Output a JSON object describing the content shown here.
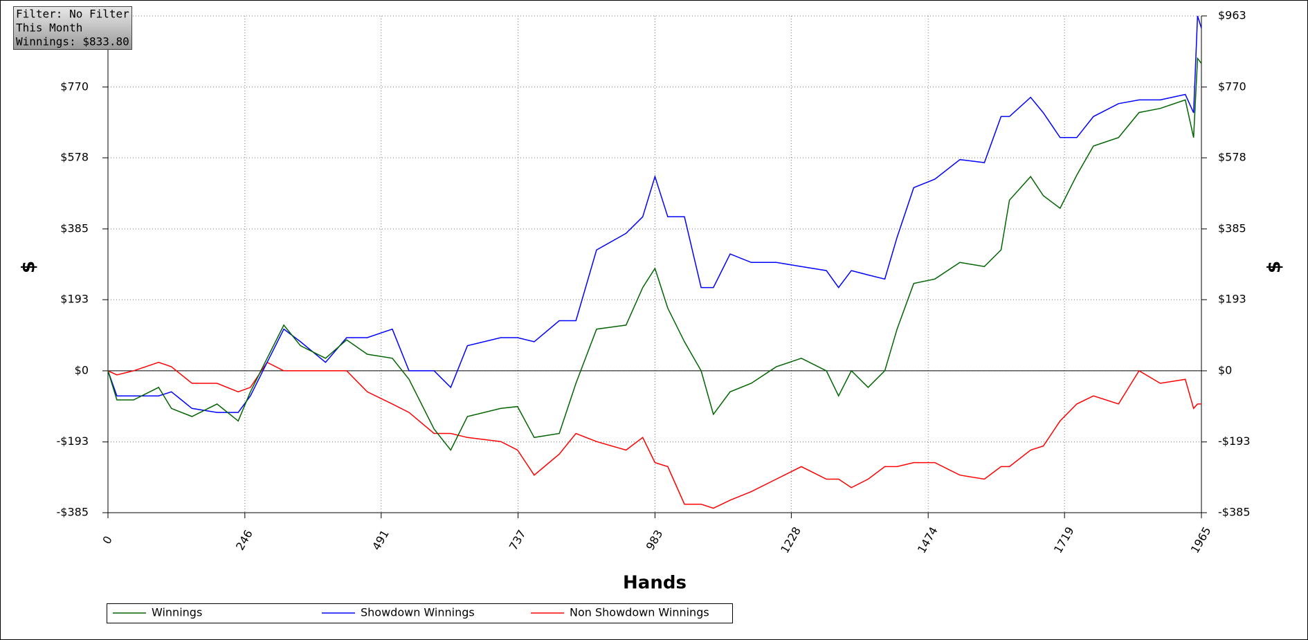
{
  "chart_data": {
    "type": "line",
    "annotations": [
      "Filter: No Filter",
      "This Month",
      "Winnings: $833.80"
    ],
    "x_label": "Hands",
    "y_label": "$",
    "y2_label": "$",
    "x": [
      0,
      16,
      46,
      91,
      114,
      151,
      196,
      234,
      256,
      286,
      316,
      346,
      391,
      429,
      466,
      511,
      541,
      586,
      616,
      646,
      706,
      736,
      766,
      811,
      841,
      878,
      931,
      961,
      983,
      1006,
      1036,
      1066,
      1088,
      1118,
      1156,
      1201,
      1246,
      1291,
      1313,
      1336,
      1366,
      1396,
      1418,
      1448,
      1486,
      1531,
      1575,
      1605,
      1620,
      1658,
      1681,
      1711,
      1741,
      1771,
      1816,
      1853,
      1891,
      1936,
      1951,
      1958,
      1965
    ],
    "series": [
      {
        "name": "Winnings",
        "color": "#006400",
        "values": [
          0,
          -79,
          -79,
          -45,
          -102,
          -124,
          -90,
          -136,
          -57,
          34,
          124,
          68,
          34,
          84,
          45,
          34,
          -23,
          -158,
          -215,
          -124,
          -102,
          -97,
          -181,
          -170,
          -34,
          113,
          124,
          226,
          278,
          170,
          79,
          0,
          -118,
          -57,
          -34,
          11,
          34,
          0,
          -68,
          0,
          -45,
          0,
          113,
          237,
          249,
          294,
          283,
          328,
          463,
          527,
          475,
          441,
          531,
          610,
          633,
          701,
          712,
          735,
          633,
          848,
          834
        ]
      },
      {
        "name": "Showdown Winnings",
        "color": "#0000ff",
        "values": [
          0,
          -68,
          -68,
          -68,
          -57,
          -102,
          -113,
          -113,
          -68,
          23,
          113,
          79,
          23,
          90,
          90,
          113,
          0,
          0,
          -45,
          68,
          90,
          90,
          79,
          136,
          136,
          328,
          373,
          418,
          527,
          418,
          418,
          226,
          226,
          317,
          294,
          294,
          283,
          272,
          226,
          272,
          260,
          249,
          362,
          497,
          520,
          573,
          565,
          690,
          690,
          742,
          700,
          633,
          633,
          690,
          725,
          735,
          735,
          750,
          700,
          963,
          930
        ]
      },
      {
        "name": "Non Showdown Winnings",
        "color": "#ff0000",
        "values": [
          0,
          -11,
          0,
          23,
          11,
          -34,
          -34,
          -57,
          -45,
          23,
          0,
          0,
          0,
          0,
          -57,
          -90,
          -113,
          -170,
          -170,
          -181,
          -192,
          -215,
          -283,
          -226,
          -170,
          -192,
          -215,
          -181,
          -249,
          -260,
          -362,
          -362,
          -373,
          -351,
          -328,
          -294,
          -260,
          -294,
          -294,
          -317,
          -294,
          -260,
          -260,
          -249,
          -249,
          -283,
          -294,
          -260,
          -260,
          -215,
          -204,
          -136,
          -90,
          -68,
          -90,
          0,
          -34,
          -23,
          -102,
          -90,
          -90
        ]
      }
    ],
    "xlim": [
      0,
      1965
    ],
    "xticks": [
      0,
      246,
      491,
      737,
      983,
      1228,
      1474,
      1719,
      1965
    ],
    "ylim": [
      -385,
      963
    ],
    "yticks": [
      {
        "value": 963,
        "label": "$963"
      },
      {
        "value": 770,
        "label": "$770"
      },
      {
        "value": 578,
        "label": "$578"
      },
      {
        "value": 385,
        "label": "$385"
      },
      {
        "value": 193,
        "label": "$193"
      },
      {
        "value": 0,
        "label": "$0"
      },
      {
        "value": -193,
        "label": "-$193"
      },
      {
        "value": -385,
        "label": "-$385"
      }
    ],
    "y2lim": [
      -385,
      963
    ],
    "y2ticks": [
      {
        "value": 963,
        "label": "$963"
      },
      {
        "value": 770,
        "label": "$770"
      },
      {
        "value": 578,
        "label": "$578"
      },
      {
        "value": 385,
        "label": "$385"
      },
      {
        "value": 193,
        "label": "$193"
      },
      {
        "value": 0,
        "label": "$0"
      },
      {
        "value": -193,
        "label": "-$193"
      },
      {
        "value": -385,
        "label": "-$385"
      }
    ],
    "grid": true,
    "legend": "bottom"
  }
}
